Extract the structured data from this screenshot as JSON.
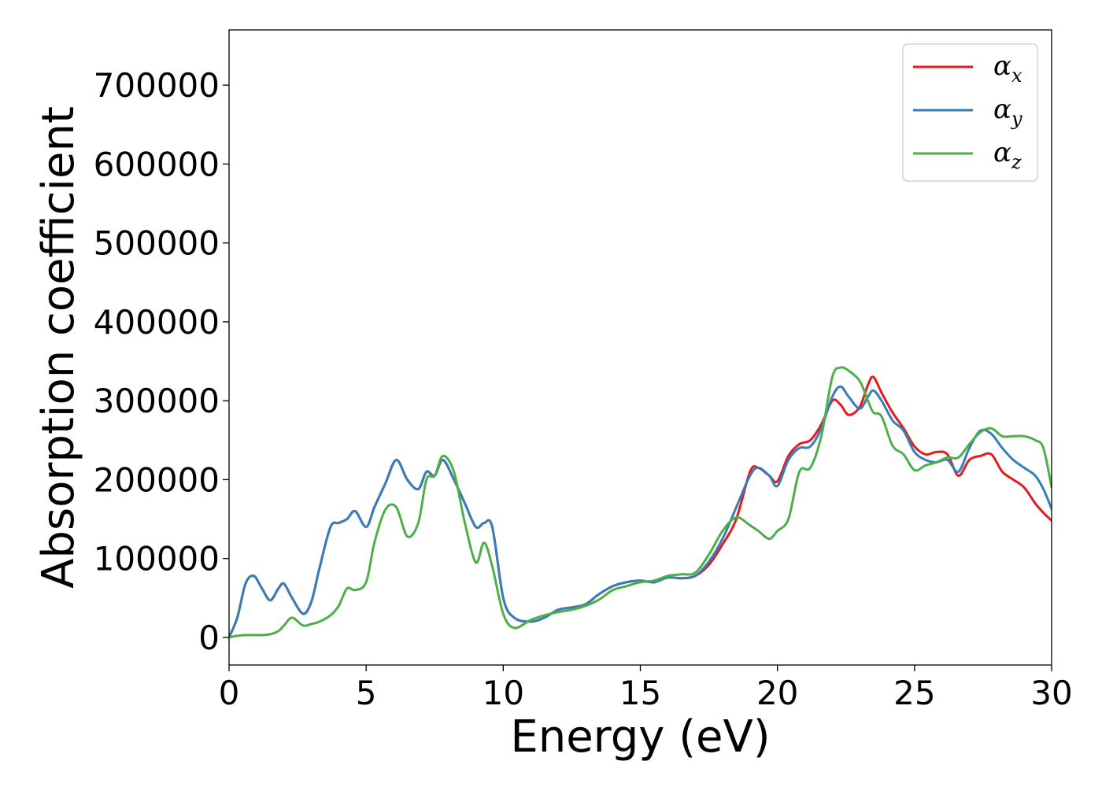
{
  "chart_data": {
    "type": "line",
    "xlabel": "Energy (eV)",
    "ylabel": "Absorption coefficient",
    "xlim": [
      0,
      30
    ],
    "ylim": [
      -35000,
      770000
    ],
    "xticks": [
      0,
      5,
      10,
      15,
      20,
      25,
      30
    ],
    "yticks": [
      0,
      100000,
      200000,
      300000,
      400000,
      500000,
      600000,
      700000
    ],
    "grid": false,
    "legend_position": "top-right",
    "series": [
      {
        "name": "α",
        "subscript": "x",
        "color": "#e41a1c",
        "x": [
          0,
          0.3,
          0.6,
          0.9,
          1.2,
          1.5,
          1.8,
          2.0,
          2.3,
          2.7,
          3.0,
          3.3,
          3.7,
          4.0,
          4.3,
          4.6,
          5.0,
          5.3,
          5.7,
          6.1,
          6.5,
          6.9,
          7.2,
          7.5,
          7.8,
          8.2,
          8.6,
          9.0,
          9.3,
          9.6,
          10.0,
          10.4,
          11.0,
          11.5,
          12.0,
          12.5,
          13.0,
          13.5,
          14.0,
          14.5,
          15.0,
          15.5,
          16.0,
          16.5,
          17.0,
          17.5,
          18.0,
          18.5,
          19.0,
          19.3,
          19.7,
          20.0,
          20.4,
          20.8,
          21.2,
          21.6,
          22.0,
          22.3,
          22.6,
          23.0,
          23.3,
          23.5,
          23.8,
          24.2,
          24.6,
          25.0,
          25.4,
          25.8,
          26.2,
          26.6,
          27.0,
          27.4,
          27.8,
          28.2,
          28.6,
          29.0,
          29.4,
          29.7,
          30.0
        ],
        "y": [
          0,
          25000,
          68000,
          78000,
          62000,
          47000,
          62000,
          68000,
          50000,
          30000,
          45000,
          88000,
          140000,
          145000,
          150000,
          160000,
          140000,
          165000,
          195000,
          225000,
          200000,
          188000,
          210000,
          205000,
          225000,
          200000,
          170000,
          140000,
          145000,
          140000,
          50000,
          25000,
          20000,
          25000,
          35000,
          38000,
          42000,
          55000,
          65000,
          70000,
          72000,
          70000,
          76000,
          75000,
          78000,
          92000,
          118000,
          150000,
          210000,
          215000,
          205000,
          198000,
          230000,
          245000,
          250000,
          270000,
          300000,
          295000,
          282000,
          292000,
          320000,
          330000,
          310000,
          285000,
          265000,
          242000,
          232000,
          235000,
          232000,
          205000,
          225000,
          230000,
          232000,
          210000,
          200000,
          190000,
          170000,
          158000,
          148000
        ]
      },
      {
        "name": "α",
        "subscript": "y",
        "color": "#377eb8",
        "x": [
          0,
          0.3,
          0.6,
          0.9,
          1.2,
          1.5,
          1.8,
          2.0,
          2.3,
          2.7,
          3.0,
          3.3,
          3.7,
          4.0,
          4.3,
          4.6,
          5.0,
          5.3,
          5.7,
          6.1,
          6.5,
          6.9,
          7.2,
          7.5,
          7.8,
          8.2,
          8.6,
          9.0,
          9.3,
          9.6,
          10.0,
          10.4,
          11.0,
          11.5,
          12.0,
          12.5,
          13.0,
          13.5,
          14.0,
          14.5,
          15.0,
          15.5,
          16.0,
          16.5,
          17.0,
          17.5,
          18.0,
          18.5,
          19.0,
          19.3,
          19.7,
          20.0,
          20.4,
          20.8,
          21.2,
          21.6,
          22.0,
          22.3,
          22.6,
          23.0,
          23.3,
          23.5,
          23.8,
          24.2,
          24.6,
          25.0,
          25.4,
          25.8,
          26.2,
          26.6,
          27.0,
          27.4,
          27.8,
          28.2,
          28.6,
          29.0,
          29.4,
          29.7,
          30.0
        ],
        "y": [
          0,
          25000,
          68000,
          78000,
          62000,
          47000,
          62000,
          68000,
          50000,
          30000,
          45000,
          88000,
          140000,
          145000,
          150000,
          160000,
          140000,
          165000,
          195000,
          225000,
          200000,
          188000,
          210000,
          205000,
          225000,
          200000,
          170000,
          140000,
          145000,
          140000,
          50000,
          25000,
          20000,
          25000,
          35000,
          38000,
          42000,
          55000,
          65000,
          70000,
          72000,
          70000,
          76000,
          75000,
          78000,
          96000,
          125000,
          165000,
          205000,
          215000,
          205000,
          192000,
          225000,
          240000,
          242000,
          265000,
          305000,
          318000,
          305000,
          290000,
          305000,
          313000,
          300000,
          275000,
          262000,
          235000,
          225000,
          222000,
          225000,
          210000,
          240000,
          262000,
          258000,
          240000,
          225000,
          215000,
          205000,
          188000,
          163000
        ]
      },
      {
        "name": "α",
        "subscript": "z",
        "color": "#4daf4a",
        "x": [
          0,
          0.3,
          0.6,
          0.9,
          1.2,
          1.5,
          1.8,
          2.0,
          2.3,
          2.7,
          3.0,
          3.3,
          3.7,
          4.0,
          4.3,
          4.6,
          5.0,
          5.3,
          5.7,
          6.1,
          6.5,
          6.9,
          7.2,
          7.5,
          7.8,
          8.2,
          8.6,
          9.0,
          9.3,
          9.6,
          10.0,
          10.4,
          11.0,
          11.5,
          12.0,
          12.5,
          13.0,
          13.5,
          14.0,
          14.5,
          15.0,
          15.5,
          16.0,
          16.5,
          17.0,
          17.5,
          18.0,
          18.5,
          19.0,
          19.3,
          19.7,
          20.0,
          20.4,
          20.8,
          21.2,
          21.6,
          22.0,
          22.3,
          22.6,
          23.0,
          23.3,
          23.5,
          23.8,
          24.2,
          24.6,
          25.0,
          25.4,
          25.8,
          26.2,
          26.6,
          27.0,
          27.4,
          27.8,
          28.2,
          28.6,
          29.0,
          29.4,
          29.7,
          30.0
        ],
        "y": [
          0,
          2000,
          3000,
          3000,
          3000,
          4000,
          8000,
          15000,
          25000,
          15000,
          17000,
          20000,
          28000,
          40000,
          62000,
          60000,
          70000,
          120000,
          162000,
          165000,
          128000,
          145000,
          200000,
          205000,
          230000,
          210000,
          145000,
          95000,
          120000,
          90000,
          30000,
          12000,
          22000,
          28000,
          32000,
          35000,
          40000,
          48000,
          60000,
          65000,
          70000,
          72000,
          78000,
          80000,
          82000,
          105000,
          135000,
          152000,
          142000,
          135000,
          125000,
          135000,
          150000,
          210000,
          215000,
          255000,
          330000,
          342000,
          338000,
          325000,
          300000,
          285000,
          280000,
          243000,
          232000,
          212000,
          218000,
          222000,
          228000,
          228000,
          245000,
          260000,
          265000,
          255000,
          255000,
          255000,
          250000,
          240000,
          190000
        ]
      }
    ]
  }
}
